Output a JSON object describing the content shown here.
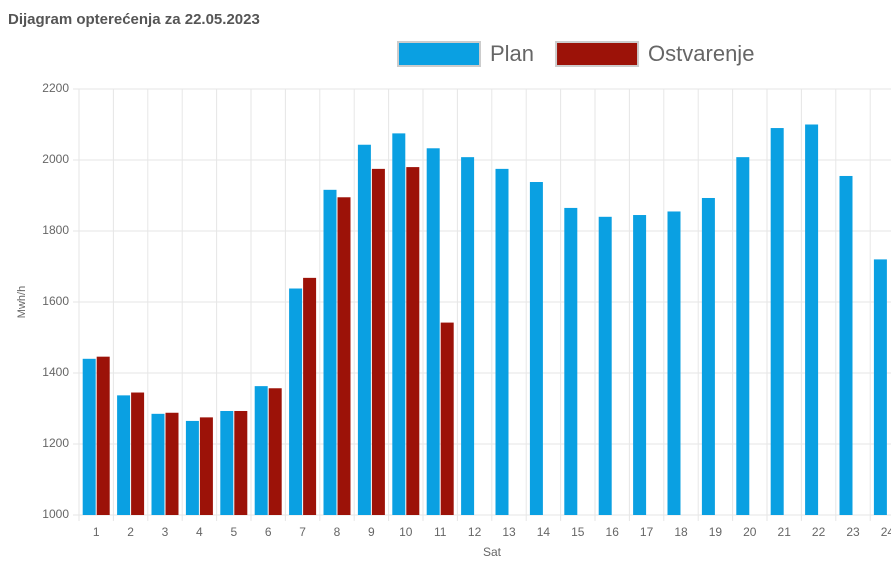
{
  "chart_data": {
    "type": "bar",
    "title": "Dijagram opterećenja za 22.05.2023",
    "x_label": "Sat",
    "y_label": "Mwh/h",
    "categories": [
      "1",
      "2",
      "3",
      "4",
      "5",
      "6",
      "7",
      "8",
      "9",
      "10",
      "11",
      "12",
      "13",
      "14",
      "15",
      "16",
      "17",
      "18",
      "19",
      "20",
      "21",
      "22",
      "23",
      "24"
    ],
    "series": [
      {
        "name": "Plan",
        "color": "#0aa0e2",
        "values": [
          1440,
          1337,
          1285,
          1265,
          1293,
          1363,
          1638,
          1916,
          2043,
          2075,
          2033,
          2008,
          1975,
          1938,
          1865,
          1840,
          1845,
          1855,
          1893,
          2008,
          2090,
          2100,
          1955,
          1720
        ]
      },
      {
        "name": "Ostvarenje",
        "color": "#9c1208",
        "values": [
          1446,
          1345,
          1288,
          1275,
          1293,
          1357,
          1668,
          1895,
          1975,
          1980,
          1542,
          null,
          null,
          null,
          null,
          null,
          null,
          null,
          null,
          null,
          null,
          null,
          null,
          null
        ]
      }
    ],
    "ylim": [
      1000,
      2200
    ],
    "yticks": [
      1000,
      1200,
      1400,
      1600,
      1800,
      2000,
      2200
    ],
    "grid": true,
    "legend": "top"
  }
}
